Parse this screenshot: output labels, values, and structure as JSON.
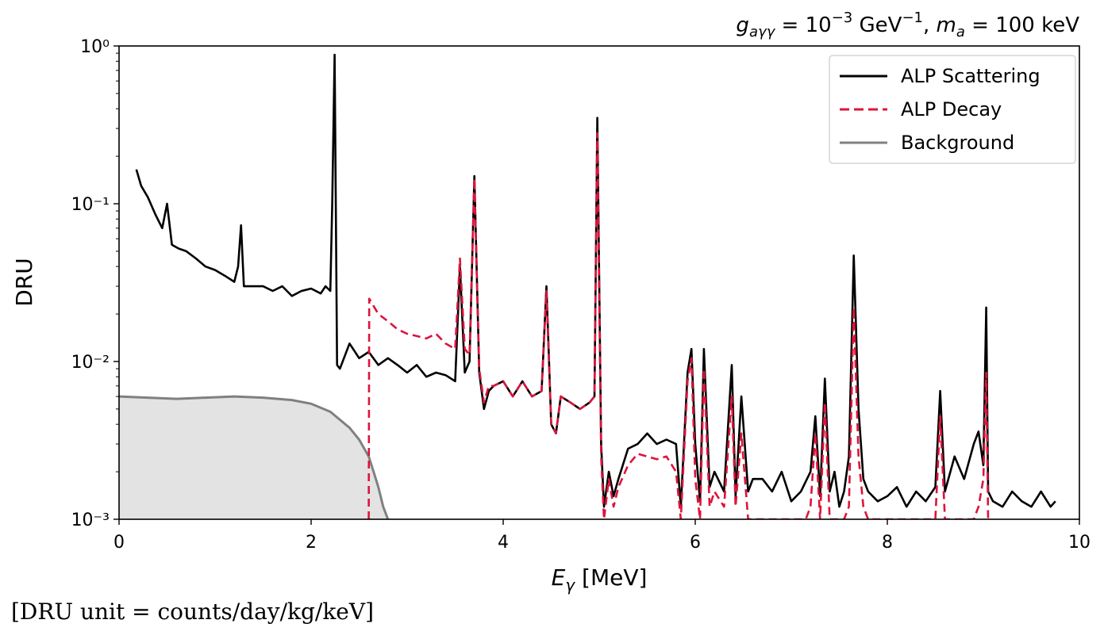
{
  "chart_data": {
    "type": "line",
    "title": "",
    "annotation": "g_aγγ = 10⁻³ GeV⁻¹, m_a = 100 keV",
    "xlabel": "E_γ [MeV]",
    "ylabel": "DRU",
    "xlim": [
      0,
      10
    ],
    "ylim": [
      0.001,
      1
    ],
    "yscale": "log",
    "grid": false,
    "legend_placement": "top-right",
    "x_ticks": [
      "0",
      "2",
      "4",
      "6",
      "8",
      "10"
    ],
    "y_ticks": [
      "10⁰",
      "10⁻¹",
      "10⁻²",
      "10⁻³"
    ],
    "colors": {
      "scattering": "#000000",
      "decay": "#dc143c",
      "background_line": "#808080",
      "background_fill": "#e3e3e3"
    },
    "series": [
      {
        "name": "ALP Scattering",
        "style": "solid",
        "x": [
          0.18,
          0.23,
          0.3,
          0.38,
          0.45,
          0.5,
          0.55,
          0.62,
          0.7,
          0.8,
          0.9,
          1.0,
          1.1,
          1.2,
          1.24,
          1.27,
          1.3,
          1.35,
          1.5,
          1.6,
          1.7,
          1.8,
          1.9,
          2.0,
          2.1,
          2.15,
          2.2,
          2.22,
          2.245,
          2.27,
          2.3,
          2.4,
          2.5,
          2.6,
          2.7,
          2.8,
          2.9,
          3.0,
          3.1,
          3.2,
          3.3,
          3.4,
          3.5,
          3.55,
          3.6,
          3.65,
          3.7,
          3.75,
          3.8,
          3.85,
          3.9,
          4.0,
          4.1,
          4.2,
          4.3,
          4.4,
          4.45,
          4.5,
          4.55,
          4.6,
          4.7,
          4.8,
          4.9,
          4.95,
          4.98,
          5.02,
          5.05,
          5.1,
          5.15,
          5.2,
          5.3,
          5.4,
          5.5,
          5.6,
          5.7,
          5.8,
          5.85,
          5.92,
          5.96,
          6.0,
          6.05,
          6.09,
          6.15,
          6.2,
          6.3,
          6.38,
          6.42,
          6.48,
          6.55,
          6.6,
          6.7,
          6.8,
          6.9,
          7.0,
          7.1,
          7.2,
          7.25,
          7.3,
          7.35,
          7.4,
          7.45,
          7.5,
          7.55,
          7.6,
          7.65,
          7.7,
          7.75,
          7.8,
          7.9,
          8.0,
          8.1,
          8.2,
          8.3,
          8.4,
          8.5,
          8.55,
          8.6,
          8.7,
          8.8,
          8.9,
          8.95,
          9.0,
          9.03,
          9.05,
          9.1,
          9.2,
          9.3,
          9.4,
          9.5,
          9.6,
          9.7,
          9.75
        ],
        "y": [
          0.165,
          0.13,
          0.11,
          0.085,
          0.07,
          0.1,
          0.055,
          0.052,
          0.05,
          0.045,
          0.04,
          0.038,
          0.035,
          0.032,
          0.04,
          0.073,
          0.03,
          0.03,
          0.03,
          0.028,
          0.03,
          0.026,
          0.028,
          0.029,
          0.027,
          0.03,
          0.028,
          0.1,
          0.88,
          0.0095,
          0.009,
          0.013,
          0.0105,
          0.0115,
          0.0095,
          0.0105,
          0.0095,
          0.0085,
          0.0095,
          0.008,
          0.0085,
          0.0082,
          0.0075,
          0.04,
          0.0085,
          0.01,
          0.15,
          0.0085,
          0.005,
          0.0065,
          0.007,
          0.0075,
          0.006,
          0.0075,
          0.006,
          0.0065,
          0.03,
          0.004,
          0.0035,
          0.006,
          0.0055,
          0.005,
          0.0055,
          0.006,
          0.35,
          0.003,
          0.0012,
          0.002,
          0.0014,
          0.0018,
          0.0028,
          0.003,
          0.0035,
          0.003,
          0.0032,
          0.003,
          0.0012,
          0.0085,
          0.012,
          0.003,
          0.0013,
          0.012,
          0.0016,
          0.002,
          0.0015,
          0.0095,
          0.0014,
          0.006,
          0.0015,
          0.0018,
          0.0018,
          0.0015,
          0.002,
          0.0013,
          0.0015,
          0.002,
          0.0045,
          0.0014,
          0.0078,
          0.0015,
          0.002,
          0.0012,
          0.0015,
          0.0025,
          0.047,
          0.005,
          0.0018,
          0.0015,
          0.0013,
          0.0014,
          0.0016,
          0.0012,
          0.0015,
          0.0013,
          0.0016,
          0.0065,
          0.0015,
          0.0025,
          0.0018,
          0.003,
          0.0036,
          0.0022,
          0.022,
          0.0015,
          0.0013,
          0.0012,
          0.0015,
          0.0013,
          0.0012,
          0.0015,
          0.0012,
          0.0013
        ]
      },
      {
        "name": "ALP Decay",
        "style": "dashed",
        "x": [
          2.6,
          2.605,
          2.7,
          2.8,
          2.9,
          3.0,
          3.1,
          3.2,
          3.3,
          3.4,
          3.5,
          3.55,
          3.6,
          3.65,
          3.7,
          3.75,
          3.8,
          3.85,
          3.9,
          4.0,
          4.1,
          4.2,
          4.3,
          4.4,
          4.45,
          4.5,
          4.55,
          4.6,
          4.7,
          4.8,
          4.9,
          4.95,
          4.98,
          5.02,
          5.05,
          5.1,
          5.15,
          5.2,
          5.3,
          5.4,
          5.5,
          5.6,
          5.7,
          5.8,
          5.85,
          5.92,
          5.96,
          6.0,
          6.05,
          6.09,
          6.15,
          6.2,
          6.3,
          6.38,
          6.42,
          6.48,
          6.55,
          6.6,
          7.15,
          7.2,
          7.25,
          7.3,
          7.35,
          7.4,
          7.55,
          7.6,
          7.65,
          7.7,
          7.75,
          7.8,
          7.9,
          8.45,
          8.5,
          8.55,
          8.6,
          8.9,
          8.95,
          9.0,
          9.03,
          9.05
        ],
        "y": [
          0.001,
          0.025,
          0.02,
          0.018,
          0.016,
          0.015,
          0.0145,
          0.014,
          0.015,
          0.013,
          0.012,
          0.045,
          0.012,
          0.011,
          0.145,
          0.009,
          0.0055,
          0.007,
          0.007,
          0.0075,
          0.006,
          0.0075,
          0.006,
          0.0065,
          0.028,
          0.004,
          0.0035,
          0.006,
          0.0055,
          0.005,
          0.0055,
          0.006,
          0.28,
          0.0025,
          0.001,
          0.0018,
          0.0012,
          0.0016,
          0.0022,
          0.0026,
          0.0025,
          0.0024,
          0.0025,
          0.002,
          0.001,
          0.0075,
          0.0105,
          0.0018,
          0.001,
          0.009,
          0.0012,
          0.0015,
          0.0012,
          0.006,
          0.0012,
          0.0035,
          0.001,
          0.001,
          0.001,
          0.0012,
          0.0035,
          0.001,
          0.0055,
          0.001,
          0.001,
          0.0012,
          0.022,
          0.0025,
          0.0012,
          0.001,
          0.001,
          0.001,
          0.001,
          0.0045,
          0.001,
          0.001,
          0.0012,
          0.0018,
          0.0085,
          0.001
        ]
      },
      {
        "name": "Background",
        "style": "solid",
        "fill": true,
        "x": [
          0,
          0.3,
          0.6,
          0.9,
          1.2,
          1.5,
          1.8,
          2.0,
          2.2,
          2.4,
          2.5,
          2.6,
          2.65,
          2.7,
          2.75,
          2.8
        ],
        "y": [
          0.006,
          0.0059,
          0.0058,
          0.0059,
          0.006,
          0.0059,
          0.0057,
          0.0054,
          0.0048,
          0.0038,
          0.0032,
          0.0025,
          0.002,
          0.0016,
          0.0012,
          0.001
        ]
      }
    ]
  },
  "footnote": "[DRU unit = counts/day/kg/keV]"
}
